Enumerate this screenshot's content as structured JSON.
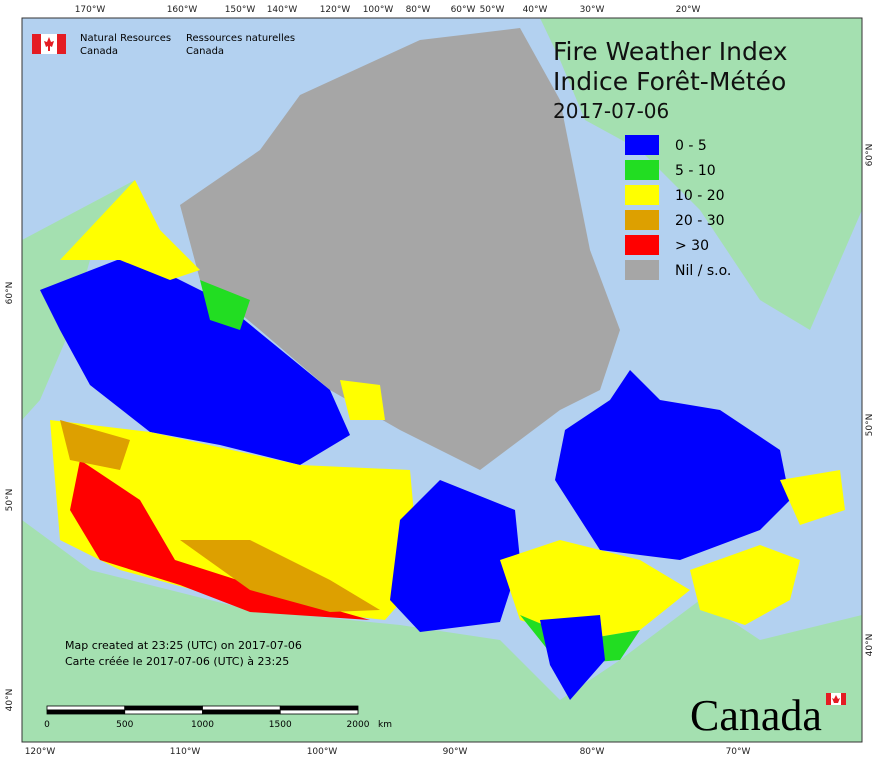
{
  "agency": {
    "english": [
      "Natural Resources",
      "Canada"
    ],
    "french": [
      "Ressources naturelles",
      "Canada"
    ]
  },
  "title": [
    "Fire Weather Index",
    "Indice Forêt-Météo"
  ],
  "date": "2017-07-06",
  "legend": [
    {
      "label": "0 - 5",
      "color": "#0000ff"
    },
    {
      "label": "5 - 10",
      "color": "#22dd22"
    },
    {
      "label": "10 - 20",
      "color": "#ffff00"
    },
    {
      "label": "20 - 30",
      "color": "#dda000"
    },
    {
      "label": "> 30",
      "color": "#ff0000"
    },
    {
      "label": "Nil / s.o.",
      "color": "#a6a6a6"
    }
  ],
  "graticule": {
    "top": [
      "170°W",
      "160°W",
      "150°W",
      "140°W",
      "120°W",
      "100°W",
      "80°W",
      "60°W",
      "50°W",
      "40°W",
      "30°W",
      "20°W"
    ],
    "bottom": [
      "120°W",
      "110°W",
      "100°W",
      "90°W",
      "80°W",
      "70°W"
    ],
    "left": [
      "60°N",
      "50°N",
      "40°N"
    ],
    "right": [
      "60°N",
      "50°N",
      "40°N"
    ]
  },
  "credits": [
    "Map created at 23:25 (UTC) on 2017-07-06",
    "Carte créée le 2017-07-06 (UTC) à 23:25"
  ],
  "scale_bar": {
    "ticks": [
      0,
      500,
      1000,
      1500,
      2000
    ],
    "unit": "km"
  },
  "wordmark": "Canada"
}
